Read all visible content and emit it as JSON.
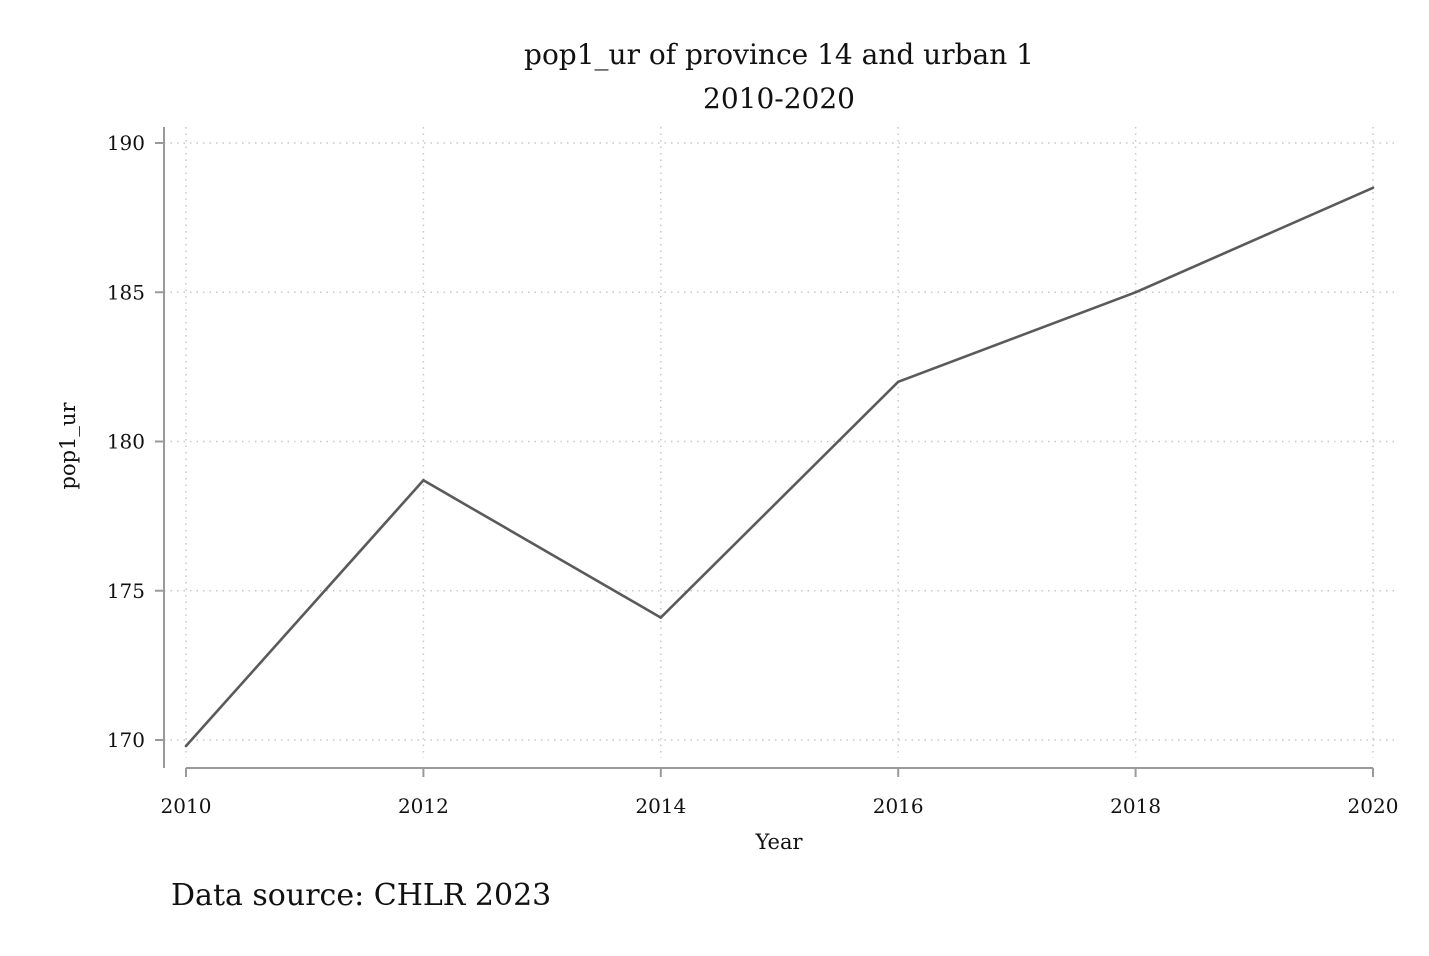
{
  "chart_data": {
    "type": "line",
    "title": "pop1_ur of province 14 and urban 1",
    "subtitle": "2010-2020",
    "xlabel": "Year",
    "ylabel": "pop1_ur",
    "x": [
      2010,
      2012,
      2014,
      2016,
      2018,
      2020
    ],
    "series": [
      {
        "values": [
          169.8,
          178.7,
          174.1,
          182.0,
          185.0,
          188.5
        ]
      }
    ],
    "x_ticks": [
      "2010",
      "2012",
      "2014",
      "2016",
      "2018",
      "2020"
    ],
    "y_ticks": [
      "170",
      "175",
      "180",
      "185",
      "190"
    ],
    "xlim": [
      2010,
      2020
    ],
    "ylim": [
      170,
      190
    ],
    "grid": true,
    "grid_style": "dotted",
    "line_color": "#5a5a5a",
    "note": "Data source: CHLR 2023"
  }
}
